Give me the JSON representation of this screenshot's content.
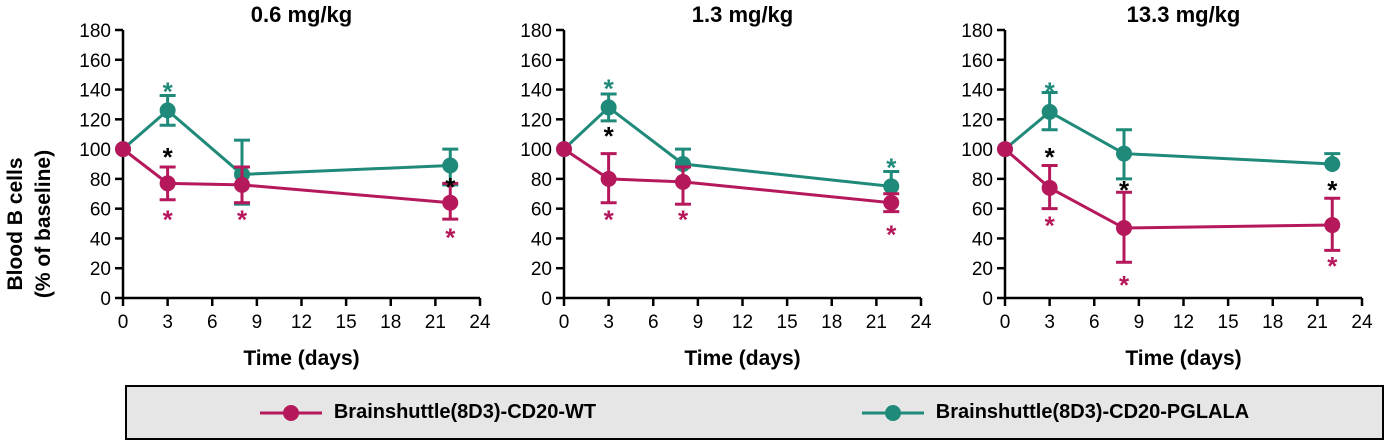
{
  "colors": {
    "wt": "#b5185b",
    "pglala": "#1f8a7a",
    "black": "#000000"
  },
  "figure": {
    "ylabel_lines": [
      "Blood B cells",
      "(% of baseline)"
    ]
  },
  "legend": {
    "wt_label": "Brainshuttle(8D3)-CD20-WT",
    "pglala_label": "Brainshuttle(8D3)-CD20-PGLALA"
  },
  "chart_data": [
    {
      "type": "line",
      "title": "0.6 mg/kg",
      "xlabel": "Time (days)",
      "ylabel": "Blood B cells (% of baseline)",
      "xlim": [
        0,
        24
      ],
      "ylim": [
        0,
        180
      ],
      "xticks": [
        0,
        3,
        6,
        9,
        12,
        15,
        18,
        21,
        24
      ],
      "yticks": [
        0,
        20,
        40,
        60,
        80,
        100,
        120,
        140,
        160,
        180
      ],
      "series": [
        {
          "name": "Brainshuttle(8D3)-CD20-WT",
          "color": "wt",
          "x": [
            0,
            3,
            8,
            22
          ],
          "y": [
            100,
            77,
            76,
            64
          ],
          "err_upper": [
            0,
            11,
            12,
            13
          ],
          "err_lower": [
            0,
            11,
            12,
            11
          ]
        },
        {
          "name": "Brainshuttle(8D3)-CD20-PGLALA",
          "color": "pglala",
          "x": [
            0,
            3,
            8,
            22
          ],
          "y": [
            100,
            126,
            83,
            89
          ],
          "err_upper": [
            0,
            10,
            23,
            11
          ],
          "err_lower": [
            0,
            10,
            20,
            13
          ]
        }
      ],
      "annotations": [
        {
          "x": 3,
          "y": 142,
          "text": "*",
          "color": "pglala"
        },
        {
          "x": 3,
          "y": 98,
          "text": "*",
          "color": "black"
        },
        {
          "x": 3,
          "y": 56,
          "text": "*",
          "color": "wt"
        },
        {
          "x": 8,
          "y": 56,
          "text": "*",
          "color": "wt"
        },
        {
          "x": 22,
          "y": 78,
          "text": "*",
          "color": "black"
        },
        {
          "x": 22,
          "y": 44,
          "text": "*",
          "color": "wt"
        }
      ]
    },
    {
      "type": "line",
      "title": "1.3 mg/kg",
      "xlabel": "Time (days)",
      "ylabel": "Blood B cells (% of baseline)",
      "xlim": [
        0,
        24
      ],
      "ylim": [
        0,
        180
      ],
      "xticks": [
        0,
        3,
        6,
        9,
        12,
        15,
        18,
        21,
        24
      ],
      "yticks": [
        0,
        20,
        40,
        60,
        80,
        100,
        120,
        140,
        160,
        180
      ],
      "series": [
        {
          "name": "Brainshuttle(8D3)-CD20-WT",
          "color": "wt",
          "x": [
            0,
            3,
            8,
            22
          ],
          "y": [
            100,
            80,
            78,
            64
          ],
          "err_upper": [
            0,
            17,
            10,
            6
          ],
          "err_lower": [
            0,
            16,
            15,
            6
          ]
        },
        {
          "name": "Brainshuttle(8D3)-CD20-PGLALA",
          "color": "pglala",
          "x": [
            0,
            3,
            8,
            22
          ],
          "y": [
            100,
            128,
            90,
            75
          ],
          "err_upper": [
            0,
            9,
            10,
            10
          ],
          "err_lower": [
            0,
            9,
            0,
            0
          ]
        }
      ],
      "annotations": [
        {
          "x": 3,
          "y": 144,
          "text": "*",
          "color": "pglala"
        },
        {
          "x": 3,
          "y": 112,
          "text": "*",
          "color": "black"
        },
        {
          "x": 3,
          "y": 56,
          "text": "*",
          "color": "wt"
        },
        {
          "x": 8,
          "y": 56,
          "text": "*",
          "color": "wt"
        },
        {
          "x": 22,
          "y": 91,
          "text": "*",
          "color": "pglala"
        },
        {
          "x": 22,
          "y": 46,
          "text": "*",
          "color": "wt"
        }
      ]
    },
    {
      "type": "line",
      "title": "13.3 mg/kg",
      "xlabel": "Time (days)",
      "ylabel": "Blood B cells (% of baseline)",
      "xlim": [
        0,
        24
      ],
      "ylim": [
        0,
        180
      ],
      "xticks": [
        0,
        3,
        6,
        9,
        12,
        15,
        18,
        21,
        24
      ],
      "yticks": [
        0,
        20,
        40,
        60,
        80,
        100,
        120,
        140,
        160,
        180
      ],
      "series": [
        {
          "name": "Brainshuttle(8D3)-CD20-WT",
          "color": "wt",
          "x": [
            0,
            3,
            8,
            22
          ],
          "y": [
            100,
            74,
            47,
            49
          ],
          "err_upper": [
            0,
            15,
            24,
            18
          ],
          "err_lower": [
            0,
            14,
            23,
            17
          ]
        },
        {
          "name": "Brainshuttle(8D3)-CD20-PGLALA",
          "color": "pglala",
          "x": [
            0,
            3,
            8,
            22
          ],
          "y": [
            100,
            125,
            97,
            90
          ],
          "err_upper": [
            0,
            13,
            16,
            7
          ],
          "err_lower": [
            0,
            12,
            17,
            0
          ]
        }
      ],
      "annotations": [
        {
          "x": 3,
          "y": 142,
          "text": "*",
          "color": "pglala"
        },
        {
          "x": 3,
          "y": 98,
          "text": "*",
          "color": "black"
        },
        {
          "x": 3,
          "y": 52,
          "text": "*",
          "color": "wt"
        },
        {
          "x": 8,
          "y": 76,
          "text": "*",
          "color": "black"
        },
        {
          "x": 8,
          "y": 12,
          "text": "*",
          "color": "wt"
        },
        {
          "x": 22,
          "y": 76,
          "text": "*",
          "color": "black"
        },
        {
          "x": 22,
          "y": 25,
          "text": "*",
          "color": "wt"
        }
      ]
    }
  ]
}
